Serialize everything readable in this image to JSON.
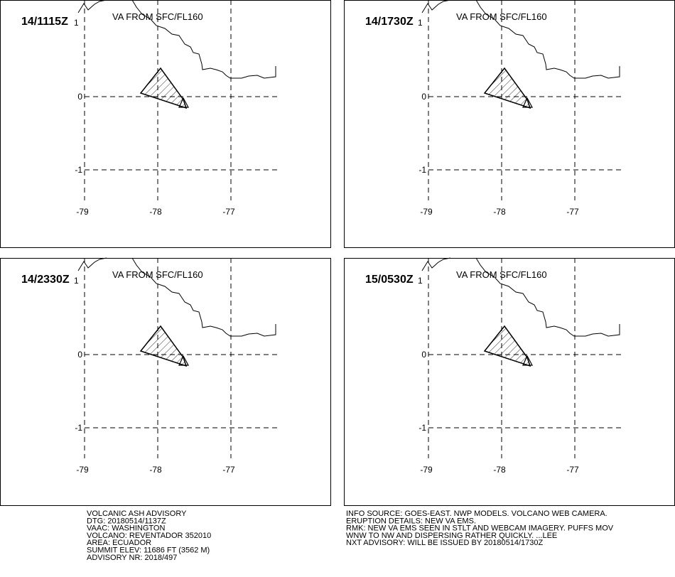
{
  "panels": [
    {
      "time": "14/1115Z",
      "marker": "1",
      "level": "VA FROM SFC/FL160"
    },
    {
      "time": "14/1730Z",
      "marker": "1",
      "level": "VA FROM SFC/FL160"
    },
    {
      "time": "14/2330Z",
      "marker": "1",
      "level": "VA FROM SFC/FL160"
    },
    {
      "time": "15/0530Z",
      "marker": "1",
      "level": "VA FROM SFC/FL160"
    }
  ],
  "grid": {
    "lon": [
      -79,
      -78,
      -77
    ],
    "lat": [
      0,
      -1
    ]
  },
  "advisory_left": [
    "VOLCANIC ASH ADVISORY",
    "DTG: 20180514/1137Z",
    "VAAC: WASHINGTON",
    "VOLCANO: REVENTADOR 352010",
    "AREA: ECUADOR",
    "SUMMIT ELEV: 11686 FT (3562 M)",
    "ADVISORY NR: 2018/497"
  ],
  "advisory_right": [
    "INFO SOURCE: GOES-EAST. NWP MODELS. VOLCANO WEB CAMERA.",
    "ERUPTION DETAILS: NEW VA EMS.",
    "RMK: NEW VA EMS SEEN IN STLT AND WEBCAM IMAGERY. PUFFS MOV",
    "WNW TO NW AND DISPERSING RATHER QUICKLY. ...LEE",
    "NXT ADVISORY: WILL BE ISSUED BY 20180514/1730Z"
  ]
}
